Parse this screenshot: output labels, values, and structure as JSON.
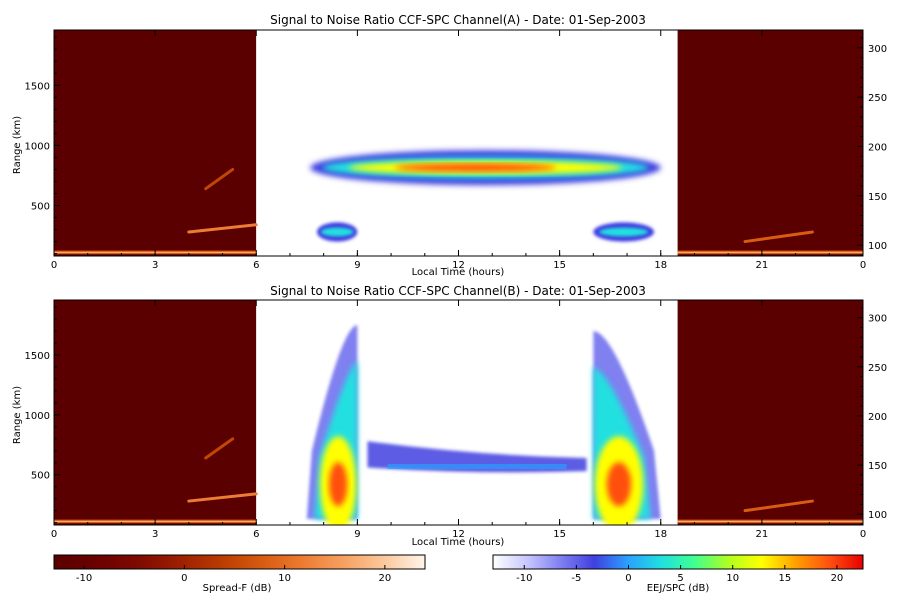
{
  "colors": {
    "spread_f": [
      "#5a0000",
      "#6a0000",
      "#7d0a00",
      "#9a1e00",
      "#b83a00",
      "#d65a10",
      "#ec7a30",
      "#f6a060",
      "#fbc89c",
      "#fff4ea"
    ],
    "eej": [
      "#ffffff",
      "#c8c8ff",
      "#8080f0",
      "#4040e0",
      "#2aa0ff",
      "#20e0e0",
      "#40ff90",
      "#b0ff20",
      "#ffff00",
      "#ffa000",
      "#ff5010",
      "#e80000"
    ],
    "background": "#ffffff",
    "frame": "#000000"
  },
  "chart_data": [
    {
      "type": "heatmap",
      "id": "channel-a",
      "title": "Signal to Noise Ratio CCF-SPC Channel(A) - Date: 01-Sep-2003",
      "xlabel": "Local Time (hours)",
      "ylabel": "Range (km)",
      "x_tick_labels": [
        "0",
        "3",
        "6",
        "9",
        "12",
        "15",
        "18",
        "21",
        "0"
      ],
      "x_tick_hours": [
        0,
        3,
        6,
        9,
        12,
        15,
        18,
        21,
        24
      ],
      "xlim_hours": [
        0,
        24
      ],
      "y_ticks": [
        500,
        1000,
        1500
      ],
      "ylim_km": [
        80,
        1960
      ],
      "y2_ticks": [
        100,
        150,
        200,
        250,
        300
      ],
      "ylim2": [
        89,
        318
      ],
      "regions": [
        {
          "name": "Spread-F",
          "colorbar": "spread_f",
          "x_range_hours": [
            0,
            6
          ]
        },
        {
          "name": "EEJ/SPC",
          "colorbar": "eej",
          "x_range_hours": [
            6,
            18.5
          ]
        },
        {
          "name": "Spread-F",
          "colorbar": "spread_f",
          "x_range_hours": [
            18.5,
            24
          ]
        }
      ],
      "features": [
        {
          "kind": "spread-f-layer",
          "t0": 0,
          "t1": 6,
          "range_km": [
            95,
            125
          ],
          "snr_db": 15
        },
        {
          "kind": "spread-f-streak",
          "t0": 4.0,
          "t1": 6.0,
          "range_km": [
            280,
            340
          ],
          "snr_db": 12
        },
        {
          "kind": "spread-f-streak",
          "t0": 4.5,
          "t1": 5.3,
          "range_km": [
            640,
            800
          ],
          "snr_db": 5
        },
        {
          "kind": "spread-f-layer",
          "t0": 18.5,
          "t1": 24,
          "range_km": [
            95,
            125
          ],
          "snr_db": 15
        },
        {
          "kind": "spread-f-streak",
          "t0": 20.5,
          "t1": 22.5,
          "range_km": [
            200,
            280
          ],
          "snr_db": 8
        },
        {
          "kind": "eej-band",
          "t0": 7.6,
          "t1": 18.0,
          "range_km": [
            670,
            960
          ],
          "peak_db": 20
        },
        {
          "kind": "eej-low-band",
          "t0": 7.8,
          "t1": 9.0,
          "range_km": [
            200,
            360
          ],
          "peak_db": 8
        },
        {
          "kind": "eej-low-band",
          "t0": 16.0,
          "t1": 17.8,
          "range_km": [
            200,
            360
          ],
          "peak_db": 8
        }
      ]
    },
    {
      "type": "heatmap",
      "id": "channel-b",
      "title": "Signal to Noise Ratio CCF-SPC Channel(B) - Date: 01-Sep-2003",
      "xlabel": "Local Time (hours)",
      "ylabel": "Range (km)",
      "x_tick_labels": [
        "0",
        "3",
        "6",
        "9",
        "12",
        "15",
        "18",
        "21",
        "0"
      ],
      "x_tick_hours": [
        0,
        3,
        6,
        9,
        12,
        15,
        18,
        21,
        24
      ],
      "xlim_hours": [
        0,
        24
      ],
      "y_ticks": [
        500,
        1000,
        1500
      ],
      "ylim_km": [
        80,
        1960
      ],
      "y2_ticks": [
        100,
        150,
        200,
        250,
        300
      ],
      "ylim2": [
        89,
        318
      ],
      "regions": [
        {
          "name": "Spread-F",
          "colorbar": "spread_f",
          "x_range_hours": [
            0,
            6
          ]
        },
        {
          "name": "EEJ/SPC",
          "colorbar": "eej",
          "x_range_hours": [
            6,
            18.5
          ]
        },
        {
          "name": "Spread-F",
          "colorbar": "spread_f",
          "x_range_hours": [
            18.5,
            24
          ]
        }
      ],
      "features": [
        {
          "kind": "spread-f-layer",
          "t0": 0,
          "t1": 6,
          "range_km": [
            95,
            125
          ],
          "snr_db": 15
        },
        {
          "kind": "spread-f-streak",
          "t0": 4.0,
          "t1": 6.0,
          "range_km": [
            280,
            340
          ],
          "snr_db": 12
        },
        {
          "kind": "spread-f-streak",
          "t0": 4.5,
          "t1": 5.3,
          "range_km": [
            640,
            800
          ],
          "snr_db": 5
        },
        {
          "kind": "spread-f-layer",
          "t0": 18.5,
          "t1": 24,
          "range_km": [
            95,
            125
          ],
          "snr_db": 15
        },
        {
          "kind": "spread-f-streak",
          "t0": 20.5,
          "t1": 22.5,
          "range_km": [
            200,
            280
          ],
          "snr_db": 8
        },
        {
          "kind": "eej-plume",
          "t0": 7.5,
          "t1": 9.0,
          "range_km": [
            130,
            1750
          ],
          "peak_range_km": 420,
          "peak_db": 20
        },
        {
          "kind": "eej-plume",
          "t0": 16.0,
          "t1": 18.0,
          "range_km": [
            130,
            1700
          ],
          "peak_range_km": 420,
          "peak_db": 20
        },
        {
          "kind": "eej-weak-band",
          "t0": 9.3,
          "t1": 15.8,
          "range_km": [
            500,
            780
          ],
          "peak_db": 0
        }
      ]
    }
  ],
  "colorbars": [
    {
      "id": "spread-f",
      "label": "Spread-F (dB)",
      "tick_labels": [
        "-10",
        "0",
        "10",
        "20"
      ],
      "ticks": [
        -10,
        0,
        10,
        20
      ],
      "range": [
        -13,
        24
      ],
      "palette": "spread_f"
    },
    {
      "id": "eej-spc",
      "label": "EEJ/SPC (dB)",
      "tick_labels": [
        "-10",
        "-5",
        "0",
        "5",
        "10",
        "15",
        "20"
      ],
      "ticks": [
        -10,
        -5,
        0,
        5,
        10,
        15,
        20
      ],
      "range": [
        -13,
        22.5
      ],
      "palette": "eej"
    }
  ]
}
